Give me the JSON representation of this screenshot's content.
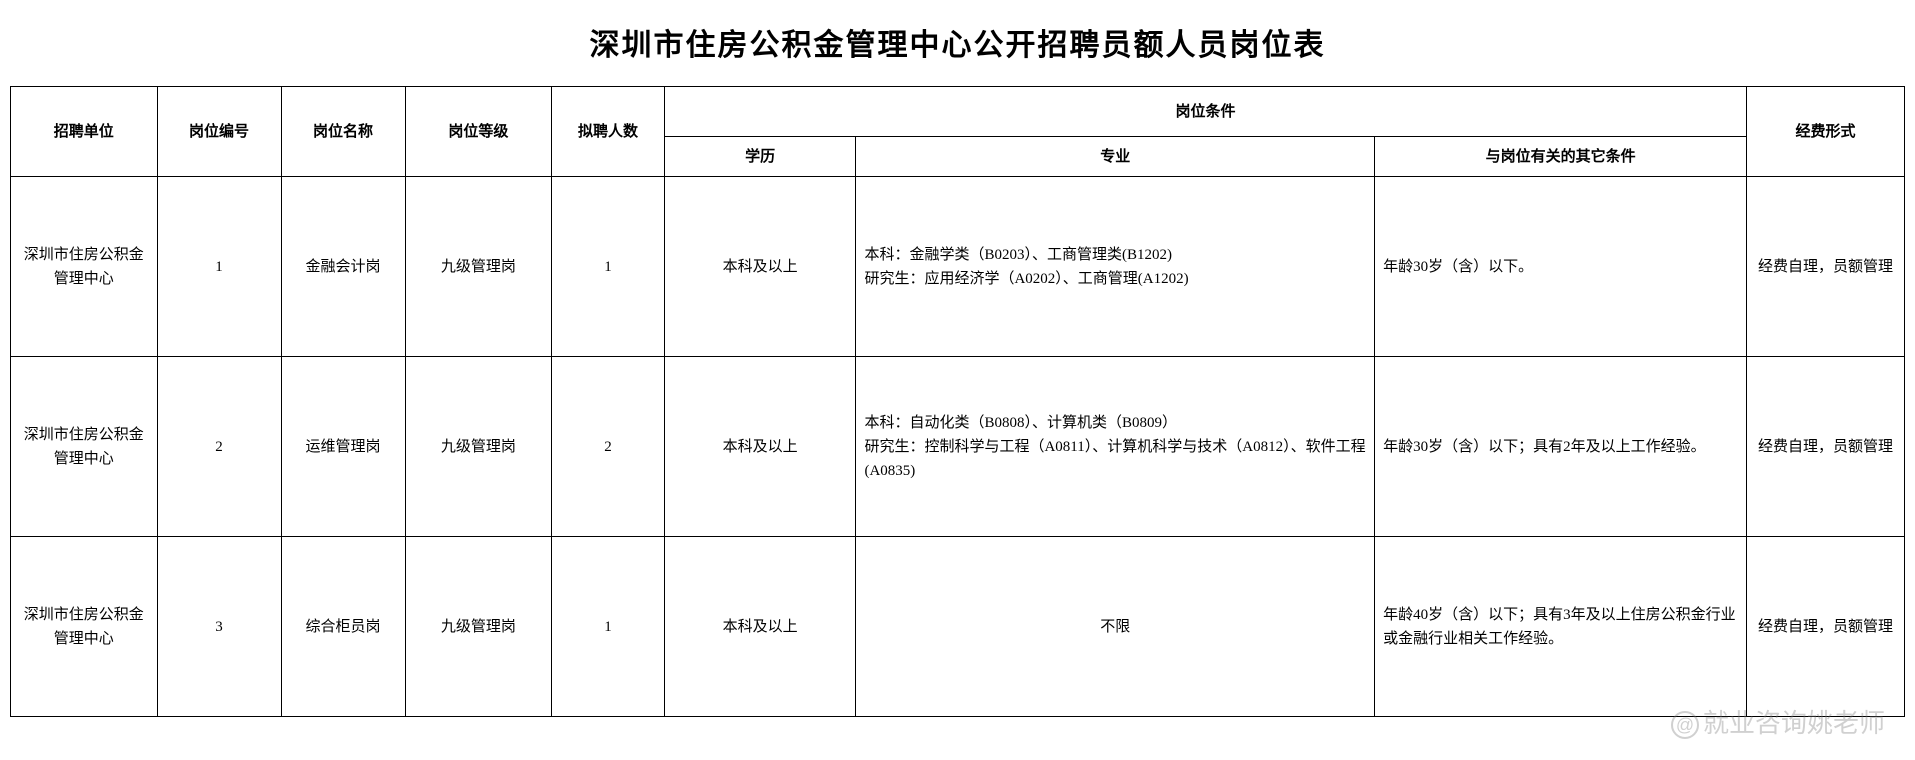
{
  "title": "深圳市住房公积金管理中心公开招聘员额人员岗位表",
  "headers": {
    "unit": "招聘单位",
    "code": "岗位编号",
    "name": "岗位名称",
    "level": "岗位等级",
    "count": "拟聘人数",
    "cond_group": "岗位条件",
    "edu": "学历",
    "major": "专业",
    "other": "与岗位有关的其它条件",
    "fund": "经费形式"
  },
  "rows": [
    {
      "unit": "深圳市住房公积金管理中心",
      "code": "1",
      "name": "金融会计岗",
      "level": "九级管理岗",
      "count": "1",
      "edu": "本科及以上",
      "major": "本科：金融学类（B0203）、工商管理类(B1202)\n研究生：应用经济学（A0202）、工商管理(A1202)",
      "other": "年龄30岁（含）以下。",
      "fund": "经费自理，员额管理"
    },
    {
      "unit": "深圳市住房公积金管理中心",
      "code": "2",
      "name": "运维管理岗",
      "level": "九级管理岗",
      "count": "2",
      "edu": "本科及以上",
      "major": "本科：自动化类（B0808）、计算机类（B0809）\n研究生：控制科学与工程（A0811）、计算机科学与技术（A0812）、软件工程(A0835)",
      "other": "年龄30岁（含）以下；具有2年及以上工作经验。",
      "fund": "经费自理，员额管理"
    },
    {
      "unit": "深圳市住房公积金管理中心",
      "code": "3",
      "name": "综合柜员岗",
      "level": "九级管理岗",
      "count": "1",
      "edu": "本科及以上",
      "major": "不限",
      "other": "年龄40岁（含）以下；具有3年及以上住房公积金行业或金融行业相关工作经验。",
      "fund": "经费自理，员额管理"
    }
  ],
  "watermark": "@就业咨询姚老师"
}
